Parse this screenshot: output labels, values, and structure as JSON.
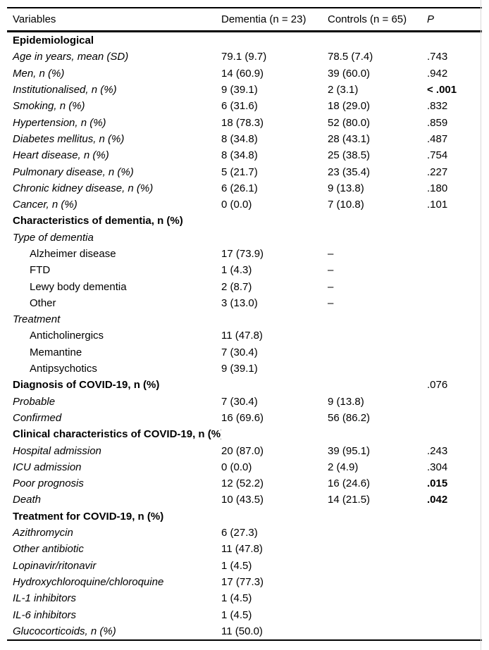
{
  "table": {
    "columns": [
      "Variables",
      "Dementia (n = 23)",
      "Controls (n = 65)",
      "P"
    ],
    "rows": [
      {
        "label": "Epidemiological",
        "style": "section",
        "dementia": "",
        "controls": "",
        "p": "",
        "p_bold": false
      },
      {
        "label": "Age in years, mean (SD)",
        "style": "italic",
        "dementia": "79.1 (9.7)",
        "controls": "78.5 (7.4)",
        "p": ".743",
        "p_bold": false
      },
      {
        "label": "Men, n (%)",
        "style": "italic",
        "dementia": "14 (60.9)",
        "controls": "39 (60.0)",
        "p": ".942",
        "p_bold": false
      },
      {
        "label": "Institutionalised, n (%)",
        "style": "italic",
        "dementia": "9 (39.1)",
        "controls": "2 (3.1)",
        "p": "< .001",
        "p_bold": true
      },
      {
        "label": "Smoking, n (%)",
        "style": "italic",
        "dementia": "6 (31.6)",
        "controls": "18 (29.0)",
        "p": ".832",
        "p_bold": false
      },
      {
        "label": "Hypertension, n (%)",
        "style": "italic",
        "dementia": "18 (78.3)",
        "controls": "52 (80.0)",
        "p": ".859",
        "p_bold": false
      },
      {
        "label": "Diabetes mellitus, n (%)",
        "style": "italic",
        "dementia": "8 (34.8)",
        "controls": "28 (43.1)",
        "p": ".487",
        "p_bold": false
      },
      {
        "label": "Heart disease, n (%)",
        "style": "italic",
        "dementia": "8 (34.8)",
        "controls": "25 (38.5)",
        "p": ".754",
        "p_bold": false
      },
      {
        "label": "Pulmonary disease, n (%)",
        "style": "italic",
        "dementia": "5 (21.7)",
        "controls": "23 (35.4)",
        "p": ".227",
        "p_bold": false
      },
      {
        "label": "Chronic kidney disease, n (%)",
        "style": "italic",
        "dementia": "6 (26.1)",
        "controls": "9 (13.8)",
        "p": ".180",
        "p_bold": false
      },
      {
        "label": "Cancer, n (%)",
        "style": "italic",
        "dementia": "0 (0.0)",
        "controls": "7 (10.8)",
        "p": ".101",
        "p_bold": false
      },
      {
        "label": "Characteristics of dementia, n (%)",
        "style": "section",
        "dementia": "",
        "controls": "",
        "p": "",
        "p_bold": false
      },
      {
        "label": "Type of dementia",
        "style": "italic",
        "dementia": "",
        "controls": "",
        "p": "",
        "p_bold": false
      },
      {
        "label": "Alzheimer disease",
        "style": "indent",
        "dementia": "17 (73.9)",
        "controls": "–",
        "p": "",
        "p_bold": false
      },
      {
        "label": "FTD",
        "style": "indent",
        "dementia": "1 (4.3)",
        "controls": "–",
        "p": "",
        "p_bold": false
      },
      {
        "label": "Lewy body dementia",
        "style": "indent",
        "dementia": "2 (8.7)",
        "controls": "–",
        "p": "",
        "p_bold": false
      },
      {
        "label": "Other",
        "style": "indent",
        "dementia": "3 (13.0)",
        "controls": "–",
        "p": "",
        "p_bold": false
      },
      {
        "label": "Treatment",
        "style": "italic",
        "dementia": "",
        "controls": "",
        "p": "",
        "p_bold": false
      },
      {
        "label": "Anticholinergics",
        "style": "indent",
        "dementia": "11 (47.8)",
        "controls": "",
        "p": "",
        "p_bold": false
      },
      {
        "label": "Memantine",
        "style": "indent",
        "dementia": "7 (30.4)",
        "controls": "",
        "p": "",
        "p_bold": false
      },
      {
        "label": "Antipsychotics",
        "style": "indent",
        "dementia": "9 (39.1)",
        "controls": "",
        "p": "",
        "p_bold": false
      },
      {
        "label": "Diagnosis of COVID-19, n (%)",
        "style": "section",
        "dementia": "",
        "controls": "",
        "p": ".076",
        "p_bold": false
      },
      {
        "label": "Probable",
        "style": "italic",
        "dementia": "7 (30.4)",
        "controls": "9 (13.8)",
        "p": "",
        "p_bold": false
      },
      {
        "label": "Confirmed",
        "style": "italic",
        "dementia": "16 (69.6)",
        "controls": "56 (86.2)",
        "p": "",
        "p_bold": false
      },
      {
        "label": "Clinical characteristics of COVID-19, n (%)",
        "style": "section",
        "dementia": "",
        "controls": "",
        "p": "",
        "p_bold": false
      },
      {
        "label": "Hospital admission",
        "style": "italic",
        "dementia": "20 (87.0)",
        "controls": "39 (95.1)",
        "p": ".243",
        "p_bold": false
      },
      {
        "label": "ICU admission",
        "style": "italic",
        "dementia": "0 (0.0)",
        "controls": "2 (4.9)",
        "p": ".304",
        "p_bold": false
      },
      {
        "label": "Poor prognosis",
        "style": "italic",
        "dementia": "12 (52.2)",
        "controls": "16 (24.6)",
        "p": ".015",
        "p_bold": true
      },
      {
        "label": "Death",
        "style": "italic",
        "dementia": "10 (43.5)",
        "controls": "14 (21.5)",
        "p": ".042",
        "p_bold": true
      },
      {
        "label": "Treatment for COVID-19, n (%)",
        "style": "section",
        "dementia": "",
        "controls": "",
        "p": "",
        "p_bold": false
      },
      {
        "label": "Azithromycin",
        "style": "italic",
        "dementia": "6 (27.3)",
        "controls": "",
        "p": "",
        "p_bold": false
      },
      {
        "label": "Other antibiotic",
        "style": "italic",
        "dementia": "11 (47.8)",
        "controls": "",
        "p": "",
        "p_bold": false
      },
      {
        "label": "Lopinavir/ritonavir",
        "style": "italic",
        "dementia": "1 (4.5)",
        "controls": "",
        "p": "",
        "p_bold": false
      },
      {
        "label": "Hydroxychloroquine/chloroquine",
        "style": "italic",
        "dementia": "17 (77.3)",
        "controls": "",
        "p": "",
        "p_bold": false
      },
      {
        "label": "IL-1 inhibitors",
        "style": "italic",
        "dementia": "1 (4.5)",
        "controls": "",
        "p": "",
        "p_bold": false
      },
      {
        "label": "IL-6 inhibitors",
        "style": "italic",
        "dementia": "1 (4.5)",
        "controls": "",
        "p": "",
        "p_bold": false
      },
      {
        "label": "Glucocorticoids, n (%)",
        "style": "italic",
        "dementia": "11 (50.0)",
        "controls": "",
        "p": "",
        "p_bold": false
      }
    ]
  }
}
